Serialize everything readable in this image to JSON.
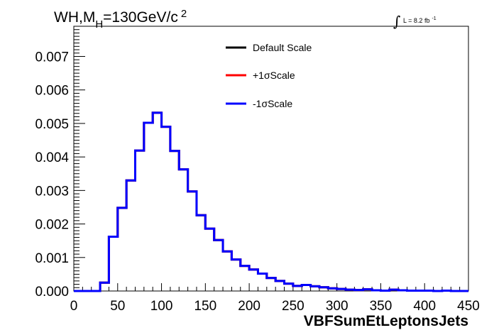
{
  "chart_data": {
    "type": "line",
    "title_parts": {
      "main": "WH,M",
      "sub": "H",
      "rest": "=130GeV/c",
      "sup": "2"
    },
    "lumi": {
      "integral": "∫",
      "text": "L = 8.2 fb",
      "sup": "-1"
    },
    "xlabel": "VBFSumEtLeptonsJets",
    "ylabel": "",
    "xlim": [
      0,
      450
    ],
    "ylim": [
      0,
      0.0079
    ],
    "x_ticks": [
      "0",
      "50",
      "100",
      "150",
      "200",
      "250",
      "300",
      "350",
      "400",
      "450"
    ],
    "y_ticks": [
      "0.000",
      "0.001",
      "0.002",
      "0.003",
      "0.004",
      "0.005",
      "0.006",
      "0.007"
    ],
    "legend_placement": "top-center",
    "bin_width": 10,
    "bin_edges_start": 0,
    "series": [
      {
        "name": "Default Scale",
        "color": "#000000",
        "values": [
          0,
          0,
          0,
          0.00025,
          0.00162,
          0.00248,
          0.0033,
          0.00419,
          0.00502,
          0.00532,
          0.0049,
          0.00418,
          0.00363,
          0.00297,
          0.00226,
          0.00186,
          0.00152,
          0.00118,
          0.00094,
          0.00075,
          0.00064,
          0.00052,
          0.00039,
          0.0003,
          0.00022,
          0.00015,
          0.00018,
          0.00014,
          0.00011,
          8e-05,
          6e-05,
          4e-05,
          3e-05,
          5e-05,
          2e-05,
          1e-05,
          4e-05,
          2e-05,
          1e-05,
          1e-05,
          1e-05,
          0.0,
          1e-05,
          0.0,
          0.0
        ]
      },
      {
        "name": "+1σScale",
        "color": "#ff0000",
        "values": [
          0,
          0,
          0,
          0.00025,
          0.00162,
          0.00248,
          0.0033,
          0.00419,
          0.00502,
          0.00532,
          0.0049,
          0.00418,
          0.00363,
          0.00297,
          0.00226,
          0.00186,
          0.00152,
          0.00118,
          0.00094,
          0.00075,
          0.00064,
          0.00052,
          0.00039,
          0.0003,
          0.00022,
          0.00015,
          0.00018,
          0.00014,
          0.00011,
          8e-05,
          6e-05,
          4e-05,
          3e-05,
          5e-05,
          2e-05,
          1e-05,
          4e-05,
          2e-05,
          1e-05,
          1e-05,
          1e-05,
          0.0,
          1e-05,
          0.0,
          0.0
        ]
      },
      {
        "name": "-1σScale",
        "color": "#0000ff",
        "values": [
          0,
          0,
          0,
          0.00025,
          0.00162,
          0.00248,
          0.0033,
          0.00419,
          0.00502,
          0.00532,
          0.0049,
          0.00418,
          0.00363,
          0.00297,
          0.00226,
          0.00186,
          0.00152,
          0.00118,
          0.00094,
          0.00075,
          0.00064,
          0.00052,
          0.00039,
          0.0003,
          0.00022,
          0.00015,
          0.00018,
          0.00014,
          0.00011,
          8e-05,
          6e-05,
          4e-05,
          3e-05,
          5e-05,
          2e-05,
          1e-05,
          4e-05,
          2e-05,
          1e-05,
          1e-05,
          1e-05,
          0.0,
          1e-05,
          0.0,
          0.0
        ]
      }
    ]
  }
}
